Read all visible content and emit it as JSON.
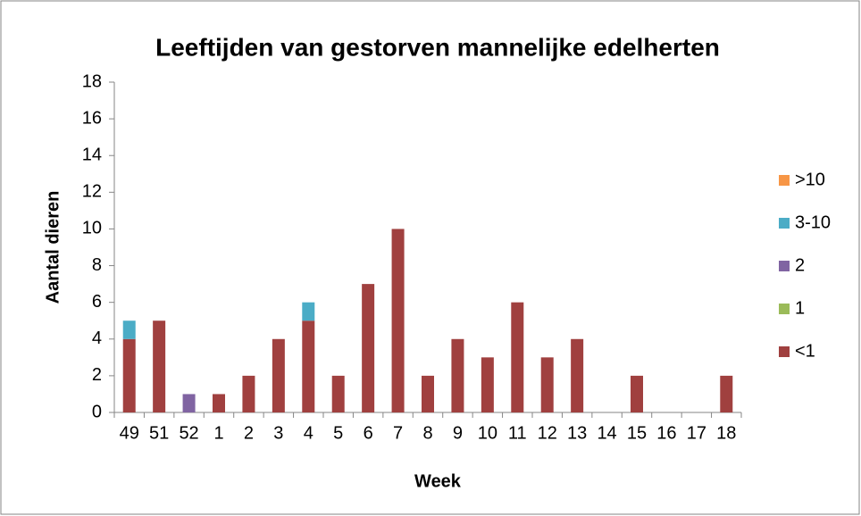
{
  "chart_data": {
    "type": "stacked_bar",
    "title": "Leeftijden van gestorven mannelijke edelherten",
    "x_label": "Week",
    "y_label": "Aantal dieren",
    "categories": [
      "49",
      "51",
      "52",
      "1",
      "2",
      "3",
      "4",
      "5",
      "6",
      "7",
      "8",
      "9",
      "10",
      "11",
      "12",
      "13",
      "14",
      "15",
      "16",
      "17",
      "18"
    ],
    "series": [
      {
        "name": "<1",
        "color": "#a0403f",
        "values": [
          4,
          5,
          0,
          1,
          2,
          4,
          5,
          2,
          7,
          10,
          2,
          4,
          3,
          6,
          3,
          4,
          0,
          2,
          0,
          0,
          2
        ]
      },
      {
        "name": "1",
        "color": "#9bbb59",
        "values": [
          0,
          0,
          0,
          0,
          0,
          0,
          0,
          0,
          0,
          0,
          0,
          0,
          0,
          0,
          0,
          0,
          0,
          0,
          0,
          0,
          0
        ]
      },
      {
        "name": "2",
        "color": "#8064a2",
        "values": [
          0,
          0,
          1,
          0,
          0,
          0,
          0,
          0,
          0,
          0,
          0,
          0,
          0,
          0,
          0,
          0,
          0,
          0,
          0,
          0,
          0
        ]
      },
      {
        "name": "3-10",
        "color": "#4bacc6",
        "values": [
          1,
          0,
          0,
          0,
          0,
          0,
          1,
          0,
          0,
          0,
          0,
          0,
          0,
          0,
          0,
          0,
          0,
          0,
          0,
          0,
          0
        ]
      },
      {
        "name": ">10",
        "color": "#f79646",
        "values": [
          0,
          0,
          0,
          0,
          0,
          0,
          0,
          0,
          0,
          0,
          0,
          0,
          0,
          0,
          0,
          0,
          0,
          0,
          0,
          0,
          0
        ]
      }
    ],
    "ylim": [
      0,
      18
    ],
    "yticks": [
      0,
      2,
      4,
      6,
      8,
      10,
      12,
      14,
      16,
      18
    ],
    "grid": false,
    "legend": "right"
  }
}
